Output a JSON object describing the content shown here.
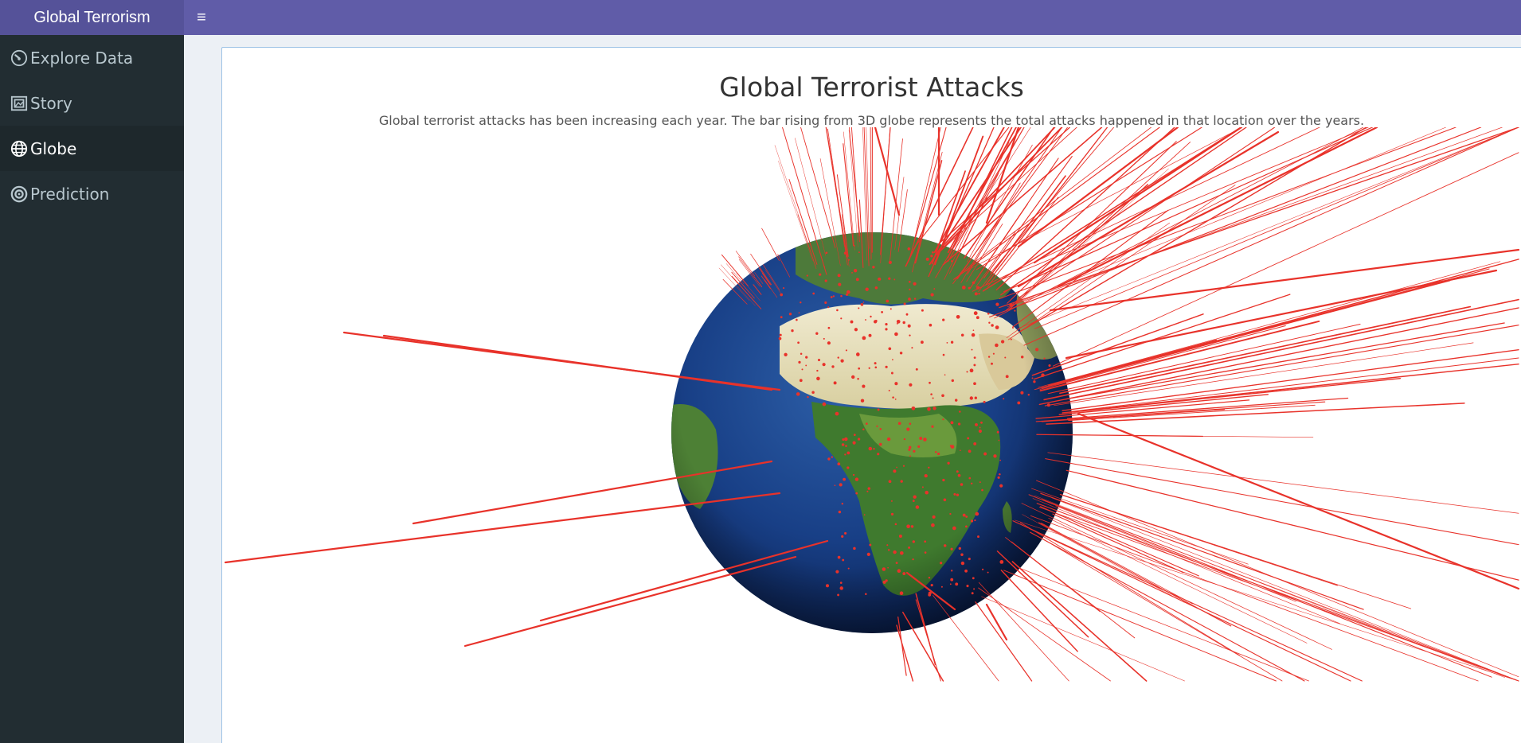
{
  "app": {
    "title": "Global Terrorism"
  },
  "header": {
    "toggle_icon": "menu-icon"
  },
  "sidebar": {
    "items": [
      {
        "label": "Explore Data",
        "icon": "dashboard-icon",
        "active": false
      },
      {
        "label": "Story",
        "icon": "picture-icon",
        "active": false
      },
      {
        "label": "Globe",
        "icon": "globe-icon",
        "active": true
      },
      {
        "label": "Prediction",
        "icon": "target-icon",
        "active": false
      }
    ]
  },
  "main": {
    "title": "Global Terrorist Attacks",
    "subtitle": "Global terrorist attacks has been increasing each year. The bar rising from 3D globe represents the total attacks happened in that location over the years."
  },
  "colors": {
    "header": "#605ca8",
    "logo": "#555299",
    "sidebar": "#222d32",
    "attack_bar": "#e8322a",
    "ocean": "#14357a"
  }
}
